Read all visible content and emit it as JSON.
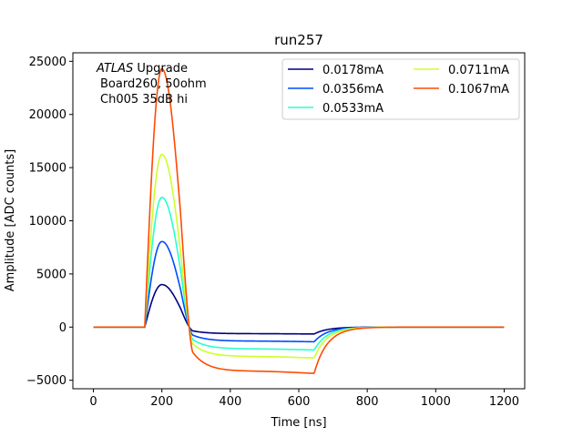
{
  "chart_data": {
    "type": "line",
    "title": "run257",
    "xlabel": "Time [ns]",
    "ylabel": "Amplitude [ADC counts]",
    "xlim": [
      -60,
      1260
    ],
    "ylim": [
      -5800,
      25800
    ],
    "xticks": [
      0,
      200,
      400,
      600,
      800,
      1000,
      1200
    ],
    "yticks": [
      -5000,
      0,
      5000,
      10000,
      15000,
      20000,
      25000
    ],
    "grid": false,
    "legend_position": "top-right",
    "annotation": {
      "line1_italic": "ATLAS",
      "line1_rest": " Upgrade",
      "line2": "Board260, 50ohm",
      "line3": "Ch005 35dB hi"
    },
    "series": [
      {
        "name": "0.0178mA",
        "color": "#00007f",
        "peak": 4000,
        "undershoot": -650
      },
      {
        "name": "0.0356mA",
        "color": "#004cff",
        "peak": 8050,
        "undershoot": -1380
      },
      {
        "name": "0.0533mA",
        "color": "#29ffce",
        "peak": 12200,
        "undershoot": -2150
      },
      {
        "name": "0.0711mA",
        "color": "#ceff29",
        "peak": 16250,
        "undershoot": -2900
      },
      {
        "name": "0.1067mA",
        "color": "#ff4a00",
        "peak": 24300,
        "undershoot": -4350
      }
    ]
  }
}
